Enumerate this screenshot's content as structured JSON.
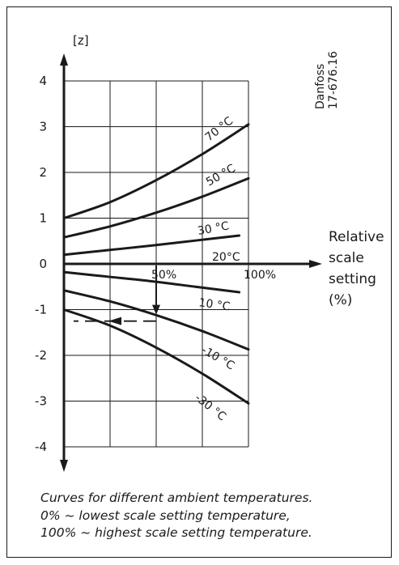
{
  "chart_data": {
    "type": "line",
    "ylabel": "[z]",
    "xlabel": "Relative scale setting (%)",
    "xlabel_lines": [
      "Relative",
      "scale",
      "setting",
      "(%)"
    ],
    "ylim": [
      -4,
      4
    ],
    "yticks": [
      "4",
      "3",
      "2",
      "1",
      "0",
      "-1",
      "-2",
      "-3",
      "-4"
    ],
    "xticks": [
      "50%",
      "100%"
    ],
    "x": [
      0,
      25,
      50,
      75,
      100
    ],
    "series": [
      {
        "name": "70 °C",
        "values": [
          1.0,
          1.35,
          1.83,
          2.4,
          3.05
        ]
      },
      {
        "name": "50 °C",
        "values": [
          0.58,
          0.82,
          1.12,
          1.47,
          1.87
        ]
      },
      {
        "name": "30 °C",
        "values": [
          0.2,
          0.3,
          0.4,
          0.51,
          0.62
        ]
      },
      {
        "name": "10 °C",
        "values": [
          -0.18,
          -0.28,
          -0.38,
          -0.5,
          -0.62
        ]
      },
      {
        "name": "-10 °C",
        "values": [
          -0.58,
          -0.82,
          -1.12,
          -1.47,
          -1.87
        ]
      },
      {
        "name": "-30 °C",
        "values": [
          -1.0,
          -1.35,
          -1.83,
          -2.4,
          -3.05
        ]
      }
    ],
    "unlabeled_annotation": {
      "name": "20°C",
      "note": "label on zero line"
    },
    "example_path": {
      "x": 50,
      "y": -1.18
    },
    "grid": true
  },
  "annotations": {
    "label_20": "20°C",
    "ref_line1": "Danfoss",
    "ref_line2": "17-676.16"
  },
  "caption": {
    "line1": "Curves for different ambient temperatures.",
    "line2": "0% ~ lowest scale setting temperature,",
    "line3": "100% ~ highest scale setting temperature."
  },
  "colors": {
    "ink": "#1a1a1a",
    "background": "#ffffff"
  }
}
